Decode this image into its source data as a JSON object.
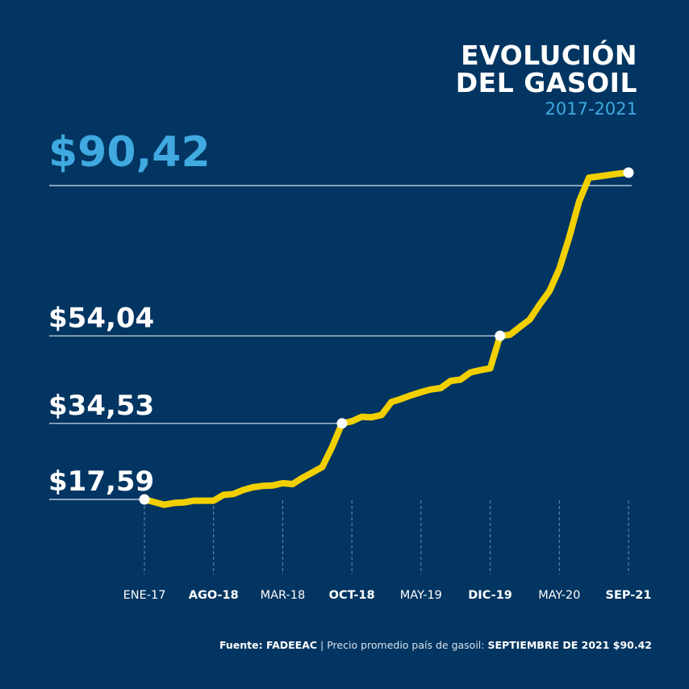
{
  "title": {
    "line1": "EVOLUCIÓN",
    "line2": "DEL GASOIL",
    "years": "2017-2021"
  },
  "footer": {
    "source_label": "Fuente: FADEEAC",
    "separator": " | ",
    "description": "Precio promedio país de gasoil: ",
    "highlight": "SEPTIEMBRE DE 2021 $90.42"
  },
  "colors": {
    "background": "#023561",
    "line": "#f2d000",
    "accent": "#3fa9e0",
    "text": "#ffffff"
  },
  "chart_data": {
    "type": "line",
    "title": "EVOLUCIÓN DEL GASOIL",
    "subtitle": "2017-2021",
    "xlabel": "",
    "ylabel": "",
    "grid": false,
    "ylim": [
      0,
      100
    ],
    "x_ticks": [
      {
        "month": 0,
        "label": "ENE-17",
        "bold": false
      },
      {
        "month": 7,
        "label": "AGO-18",
        "bold": true
      },
      {
        "month": 14,
        "label": "MAR-18",
        "bold": false
      },
      {
        "month": 21,
        "label": "OCT-18",
        "bold": true
      },
      {
        "month": 28,
        "label": "MAY-19",
        "bold": false
      },
      {
        "month": 35,
        "label": "DIC-19",
        "bold": true
      },
      {
        "month": 42,
        "label": "MAY-20",
        "bold": false
      },
      {
        "month": 49,
        "label": "SEP-21",
        "bold": true
      }
    ],
    "annotations": [
      {
        "month": 0,
        "value": 17.59,
        "label": "$17,59",
        "highlight": false
      },
      {
        "month": 20,
        "value": 34.53,
        "label": "$34,53",
        "highlight": false
      },
      {
        "month": 36,
        "value": 54.04,
        "label": "$54,04",
        "highlight": false
      },
      {
        "month": 49,
        "value": 90.42,
        "label": "$90,42",
        "highlight": true
      }
    ],
    "series": [
      {
        "values": [
          [
            0,
            17.59
          ],
          [
            1,
            17.0
          ],
          [
            2,
            16.4
          ],
          [
            3,
            16.8
          ],
          [
            4,
            16.9
          ],
          [
            5,
            17.3
          ],
          [
            6,
            17.3
          ],
          [
            7,
            17.3
          ],
          [
            8,
            18.6
          ],
          [
            9,
            18.8
          ],
          [
            10,
            19.7
          ],
          [
            11,
            20.3
          ],
          [
            12,
            20.6
          ],
          [
            13,
            20.7
          ],
          [
            14,
            21.2
          ],
          [
            15,
            21.0
          ],
          [
            16,
            22.4
          ],
          [
            17,
            23.6
          ],
          [
            18,
            24.8
          ],
          [
            19,
            29.3
          ],
          [
            20,
            34.53
          ],
          [
            21,
            35.0
          ],
          [
            22,
            36.0
          ],
          [
            23,
            35.9
          ],
          [
            24,
            36.4
          ],
          [
            25,
            39.3
          ],
          [
            26,
            40.0
          ],
          [
            27,
            40.8
          ],
          [
            28,
            41.5
          ],
          [
            29,
            42.1
          ],
          [
            30,
            42.4
          ],
          [
            31,
            44.0
          ],
          [
            32,
            44.3
          ],
          [
            33,
            45.9
          ],
          [
            34,
            46.4
          ],
          [
            35,
            46.8
          ],
          [
            36,
            54.04
          ],
          [
            37,
            54.3
          ],
          [
            38,
            56.0
          ],
          [
            39,
            57.7
          ],
          [
            40,
            61.0
          ],
          [
            41,
            64.0
          ],
          [
            42,
            69.0
          ],
          [
            43,
            76.0
          ],
          [
            44,
            84.0
          ],
          [
            45,
            89.3
          ],
          [
            46,
            89.6
          ],
          [
            47,
            89.9
          ],
          [
            48,
            90.2
          ],
          [
            49,
            90.42
          ]
        ]
      }
    ]
  }
}
